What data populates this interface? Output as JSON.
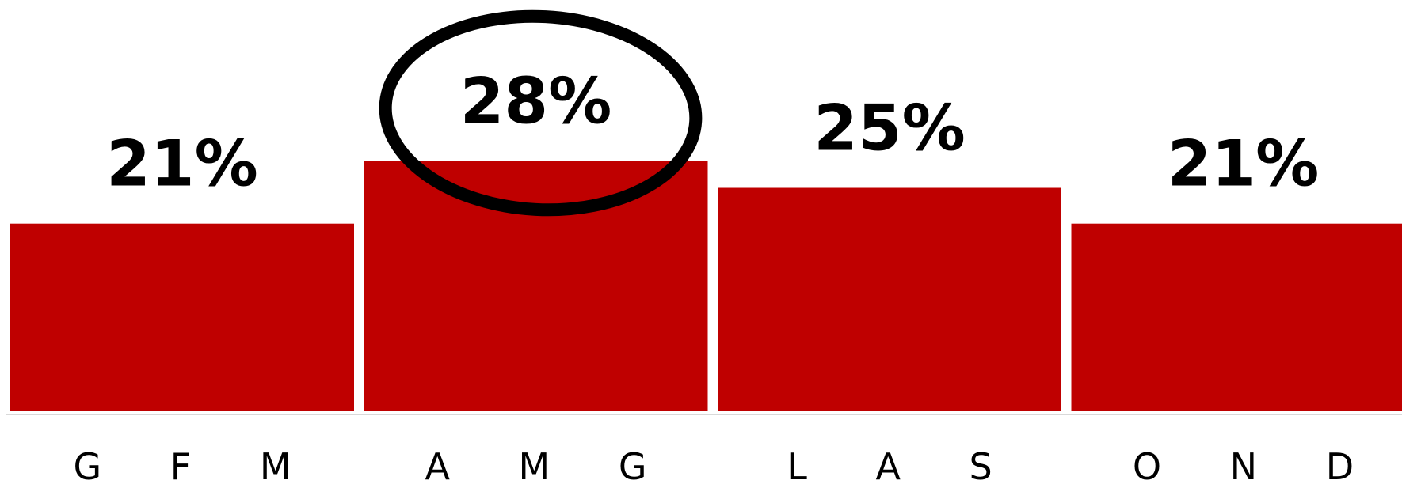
{
  "chart_data": {
    "type": "bar",
    "categories": [
      "G F M",
      "A M G",
      "L A S",
      "O N D"
    ],
    "values": [
      21,
      28,
      25,
      21
    ],
    "data_labels": [
      "21%",
      "28%",
      "25%",
      "21%"
    ],
    "title": "",
    "xlabel": "",
    "ylabel": "",
    "ylim": [
      0,
      40
    ],
    "grid": false,
    "legend": "none",
    "highlighted_category": "A M G",
    "colors": {
      "bar": "#bf0000",
      "baseline": "#d9d9d9",
      "highlight_outline": "#000000"
    }
  }
}
